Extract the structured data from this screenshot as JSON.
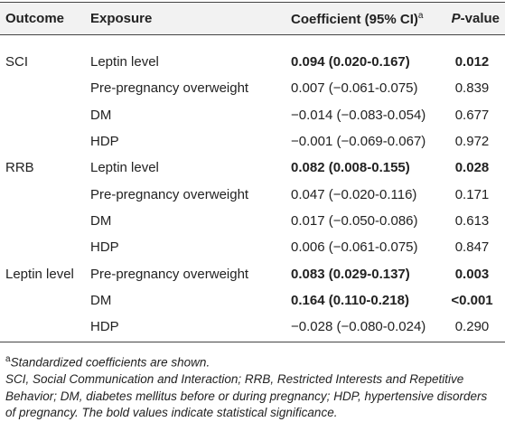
{
  "table": {
    "header": {
      "outcome": "Outcome",
      "exposure": "Exposure",
      "coefficient": "Coefficient (95% CI)",
      "coefficient_marker": "a",
      "p_italic": "P",
      "p_rest": "-value"
    },
    "rows": [
      {
        "outcome": "SCI",
        "exposure": "Leptin level",
        "coefficient": "0.094 (0.020-0.167)",
        "p_value": "0.012",
        "bold": true
      },
      {
        "outcome": null,
        "exposure": "Pre-pregnancy overweight",
        "coefficient": "0.007 (−0.061-0.075)",
        "p_value": "0.839",
        "bold": false
      },
      {
        "outcome": null,
        "exposure": "DM",
        "coefficient": "−0.014 (−0.083-0.054)",
        "p_value": "0.677",
        "bold": false
      },
      {
        "outcome": null,
        "exposure": "HDP",
        "coefficient": "−0.001 (−0.069-0.067)",
        "p_value": "0.972",
        "bold": false
      },
      {
        "outcome": "RRB",
        "exposure": "Leptin level",
        "coefficient": "0.082 (0.008-0.155)",
        "p_value": "0.028",
        "bold": true
      },
      {
        "outcome": null,
        "exposure": "Pre-pregnancy overweight",
        "coefficient": "0.047 (−0.020-0.116)",
        "p_value": "0.171",
        "bold": false
      },
      {
        "outcome": null,
        "exposure": "DM",
        "coefficient": "0.017 (−0.050-0.086)",
        "p_value": "0.613",
        "bold": false
      },
      {
        "outcome": null,
        "exposure": "HDP",
        "coefficient": "0.006 (−0.061-0.075)",
        "p_value": "0.847",
        "bold": false
      },
      {
        "outcome": "Leptin level",
        "exposure": "Pre-pregnancy overweight",
        "coefficient": "0.083 (0.029-0.137)",
        "p_value": "0.003",
        "bold": true
      },
      {
        "outcome": null,
        "exposure": "DM",
        "coefficient": "0.164 (0.110-0.218)",
        "p_value": "<0.001",
        "bold": true
      },
      {
        "outcome": null,
        "exposure": "HDP",
        "coefficient": "−0.028 (−0.080-0.024)",
        "p_value": "0.290",
        "bold": false
      }
    ]
  },
  "footnotes": [
    {
      "marker": "a",
      "text": "Standardized coefficients are shown."
    },
    {
      "text": "SCI, Social Communication and Interaction; RRB, Restricted Interests and Repetitive Behavior; DM, diabetes mellitus before or during pregnancy; HDP, hypertensive disorders of pregnancy. The bold values indicate statistical significance."
    }
  ]
}
